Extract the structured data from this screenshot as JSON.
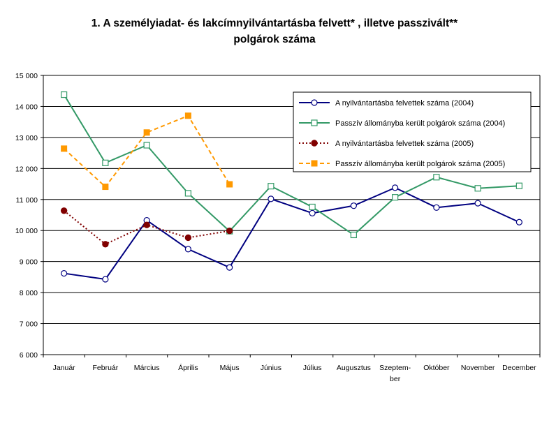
{
  "chart_data": {
    "type": "line",
    "title_line1": "1. A személyiadat- és lakcímnyilvántartásba felvett* , illetve passzivált**",
    "title_line2": "polgárok száma",
    "xlabel": "",
    "ylabel": "",
    "ylim": [
      6000,
      15000
    ],
    "y_ticks": [
      "6 000",
      "7 000",
      "8 000",
      "9 000",
      "10 000",
      "11 000",
      "12 000",
      "13 000",
      "14 000",
      "15 000"
    ],
    "categories": [
      "Január",
      "Február",
      "Március",
      "Április",
      "Május",
      "Június",
      "Július",
      "Augusztus",
      "Szeptem-ber",
      "Október",
      "November",
      "December"
    ],
    "category_label_lines": [
      [
        "Január"
      ],
      [
        "Február"
      ],
      [
        "Március"
      ],
      [
        "Április"
      ],
      [
        "Május"
      ],
      [
        "Június"
      ],
      [
        "Július"
      ],
      [
        "Augusztus"
      ],
      [
        "Szeptem-",
        "ber"
      ],
      [
        "Október"
      ],
      [
        "November"
      ],
      [
        "December"
      ]
    ],
    "grid": "horizontal",
    "legend_position": "top-right",
    "series": [
      {
        "name": "A nyilvántartásba felvettek száma (2004)",
        "color": "#000080",
        "line_style": "solid",
        "marker": "circle-open",
        "values": [
          8620,
          8430,
          10330,
          9400,
          8810,
          11020,
          10560,
          10800,
          11380,
          10740,
          10880,
          10270
        ]
      },
      {
        "name": "Passzív állományba került polgárok száma (2004)",
        "color": "#339966",
        "line_style": "solid",
        "marker": "square-open",
        "values": [
          14380,
          12180,
          12750,
          11200,
          9980,
          11430,
          10760,
          9860,
          11070,
          11720,
          11360,
          11440
        ]
      },
      {
        "name": "A nyilvántartásba felvettek száma (2005)",
        "color": "#800000",
        "line_style": "dotted",
        "marker": "diamond-filled",
        "values": [
          10640,
          9560,
          10180,
          9770,
          9990,
          null,
          null,
          null,
          null,
          null,
          null,
          null
        ]
      },
      {
        "name": "Passzív állományba került polgárok száma (2005)",
        "color": "#FF9900",
        "line_style": "dashed",
        "marker": "square-filled",
        "values": [
          12640,
          11410,
          13160,
          13700,
          11490,
          null,
          null,
          null,
          null,
          null,
          null,
          null
        ]
      }
    ]
  }
}
